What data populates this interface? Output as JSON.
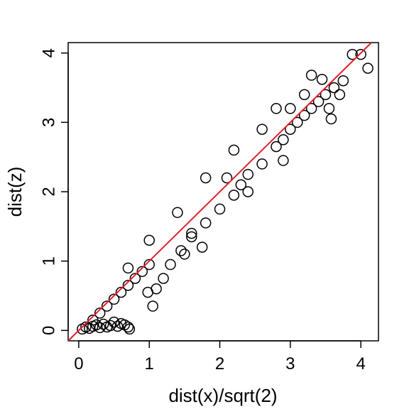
{
  "chart_data": {
    "type": "scatter",
    "title": "",
    "xlabel": "dist(x)/sqrt(2)",
    "ylabel": "dist(z)",
    "xlim": [
      -0.15,
      4.25
    ],
    "ylim": [
      -0.15,
      4.15
    ],
    "xticks": [
      0,
      1,
      2,
      3,
      4
    ],
    "yticks": [
      0,
      1,
      2,
      3,
      4
    ],
    "xtick_labels": [
      "0",
      "1",
      "2",
      "3",
      "4"
    ],
    "ytick_labels": [
      "0",
      "1",
      "2",
      "3",
      "4"
    ],
    "grid": false,
    "legend": "none",
    "marker": "open-circle",
    "marker_color": "#000000",
    "reference_line": {
      "slope": 1,
      "intercept": 0,
      "color": "#e0202a"
    },
    "series": [
      {
        "values": [
          [
            0.05,
            0.02
          ],
          [
            0.1,
            0.05
          ],
          [
            0.15,
            0.03
          ],
          [
            0.2,
            0.06
          ],
          [
            0.25,
            0.08
          ],
          [
            0.3,
            0.04
          ],
          [
            0.35,
            0.09
          ],
          [
            0.4,
            0.05
          ],
          [
            0.45,
            0.07
          ],
          [
            0.5,
            0.12
          ],
          [
            0.55,
            0.06
          ],
          [
            0.6,
            0.1
          ],
          [
            0.65,
            0.08
          ],
          [
            0.7,
            0.05
          ],
          [
            0.72,
            0.02
          ],
          [
            0.2,
            0.15
          ],
          [
            0.3,
            0.25
          ],
          [
            0.4,
            0.35
          ],
          [
            0.5,
            0.45
          ],
          [
            0.6,
            0.55
          ],
          [
            0.7,
            0.65
          ],
          [
            0.8,
            0.75
          ],
          [
            0.9,
            0.85
          ],
          [
            1.0,
            0.95
          ],
          [
            0.98,
            0.55
          ],
          [
            1.1,
            0.6
          ],
          [
            1.05,
            0.35
          ],
          [
            1.2,
            0.75
          ],
          [
            1.3,
            0.95
          ],
          [
            1.45,
            1.15
          ],
          [
            1.6,
            1.35
          ],
          [
            1.75,
            1.2
          ],
          [
            1.8,
            1.55
          ],
          [
            2.0,
            1.75
          ],
          [
            2.2,
            1.95
          ],
          [
            2.3,
            2.1
          ],
          [
            2.4,
            2.25
          ],
          [
            2.6,
            2.4
          ],
          [
            2.8,
            2.65
          ],
          [
            2.9,
            2.75
          ],
          [
            3.0,
            2.9
          ],
          [
            3.1,
            3.0
          ],
          [
            3.2,
            3.1
          ],
          [
            3.3,
            3.2
          ],
          [
            3.4,
            3.3
          ],
          [
            3.5,
            3.4
          ],
          [
            3.55,
            3.2
          ],
          [
            3.58,
            3.05
          ],
          [
            3.62,
            3.5
          ],
          [
            3.7,
            3.4
          ],
          [
            3.75,
            3.6
          ],
          [
            3.3,
            3.68
          ],
          [
            3.45,
            3.62
          ],
          [
            3.88,
            3.98
          ],
          [
            4.0,
            3.98
          ],
          [
            4.1,
            3.78
          ],
          [
            0.7,
            0.9
          ],
          [
            1.0,
            1.3
          ],
          [
            1.4,
            1.7
          ],
          [
            1.8,
            2.2
          ],
          [
            2.2,
            2.6
          ],
          [
            2.6,
            2.9
          ],
          [
            2.8,
            3.2
          ],
          [
            3.0,
            3.2
          ],
          [
            3.2,
            3.4
          ],
          [
            1.5,
            1.1
          ],
          [
            2.4,
            2.0
          ],
          [
            2.9,
            2.45
          ],
          [
            1.6,
            1.4
          ],
          [
            2.1,
            2.2
          ]
        ]
      }
    ]
  }
}
